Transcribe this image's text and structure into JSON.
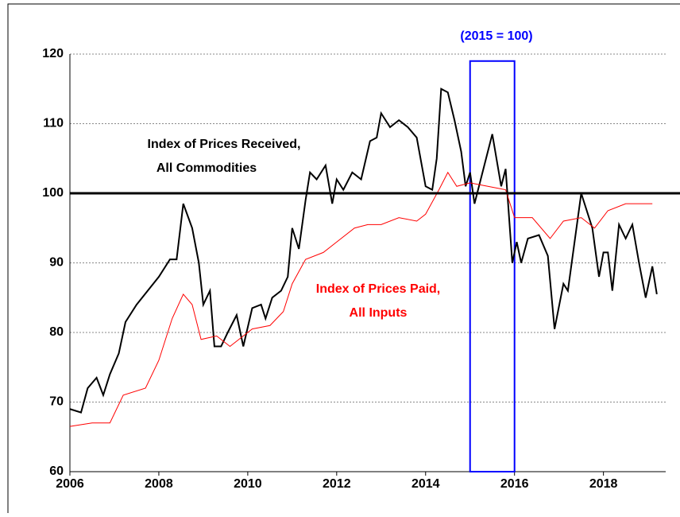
{
  "chart_data": {
    "type": "line",
    "annotations": [
      "(2015 = 100)",
      "Index of Prices Received,",
      "All Commodities",
      "Index of Prices Paid,",
      "All Inputs"
    ],
    "xlim": [
      2006,
      2019.4
    ],
    "ylim": [
      60,
      120
    ],
    "xticks": [
      2006,
      2008,
      2010,
      2012,
      2014,
      2016,
      2018
    ],
    "yticks": [
      60,
      70,
      80,
      90,
      100,
      110,
      120
    ],
    "grid": true,
    "reference_line": 100,
    "highlight": {
      "x": [
        2015,
        2016
      ],
      "y": [
        60,
        119
      ],
      "color": "#0000ff"
    },
    "series": [
      {
        "color": "#000000",
        "x": [
          2006.0,
          2006.25,
          2006.4,
          2006.6,
          2006.75,
          2006.9,
          2007.1,
          2007.25,
          2007.5,
          2007.75,
          2008.0,
          2008.25,
          2008.4,
          2008.55,
          2008.75,
          2008.9,
          2009.0,
          2009.15,
          2009.25,
          2009.4,
          2009.55,
          2009.75,
          2009.9,
          2010.1,
          2010.3,
          2010.4,
          2010.55,
          2010.75,
          2010.9,
          2011.0,
          2011.15,
          2011.3,
          2011.4,
          2011.55,
          2011.75,
          2011.9,
          2012.0,
          2012.15,
          2012.35,
          2012.55,
          2012.75,
          2012.9,
          2013.0,
          2013.2,
          2013.4,
          2013.6,
          2013.8,
          2014.0,
          2014.15,
          2014.25,
          2014.35,
          2014.5,
          2014.65,
          2014.8,
          2014.9,
          2015.0,
          2015.1,
          2015.3,
          2015.5,
          2015.7,
          2015.8,
          2015.95,
          2016.05,
          2016.15,
          2016.3,
          2016.55,
          2016.75,
          2016.9,
          2017.1,
          2017.2,
          2017.5,
          2017.75,
          2017.9,
          2018.0,
          2018.1,
          2018.2,
          2018.35,
          2018.5,
          2018.65,
          2018.8,
          2018.95,
          2019.1,
          2019.2
        ],
        "values": [
          69,
          68.5,
          72,
          73.5,
          71,
          74,
          77,
          81.5,
          84,
          86,
          88,
          90.5,
          90.5,
          98.5,
          95,
          90,
          84,
          86,
          78,
          78,
          80,
          82.5,
          78,
          83.5,
          84,
          82,
          85,
          86,
          88,
          95,
          92,
          99,
          103,
          102,
          104,
          98.5,
          102,
          100.5,
          103,
          102,
          107.5,
          108,
          111.5,
          109.5,
          110.5,
          109.5,
          108,
          101,
          100.5,
          105,
          115,
          114.5,
          110.5,
          106,
          101,
          103,
          98.5,
          103.5,
          108.5,
          101,
          103.5,
          90,
          93,
          90,
          93.5,
          94,
          91,
          80.5,
          87,
          86,
          100,
          95,
          88,
          91.5,
          91.5,
          86,
          95.5,
          93.5,
          95.5,
          90,
          85,
          89.5,
          85.5
        ]
      },
      {
        "color": "#ff0000",
        "x": [
          2006.0,
          2006.5,
          2006.9,
          2007.2,
          2007.7,
          2008.0,
          2008.3,
          2008.55,
          2008.75,
          2008.95,
          2009.3,
          2009.6,
          2009.8,
          2010.1,
          2010.5,
          2010.8,
          2011.0,
          2011.3,
          2011.7,
          2012.0,
          2012.4,
          2012.7,
          2013.0,
          2013.4,
          2013.8,
          2014.0,
          2014.3,
          2014.5,
          2014.7,
          2015.0,
          2015.4,
          2015.8,
          2016.0,
          2016.4,
          2016.8,
          2017.1,
          2017.5,
          2017.8,
          2018.1,
          2018.5,
          2019.1
        ],
        "values": [
          66.5,
          67,
          67,
          71,
          72,
          76,
          82,
          85.5,
          84,
          79,
          79.5,
          78,
          79,
          80.5,
          81,
          83,
          87,
          90.5,
          91.5,
          93,
          95,
          95.5,
          95.5,
          96.5,
          96,
          97,
          100.5,
          103,
          101,
          101.5,
          101,
          100.5,
          96.5,
          96.5,
          93.5,
          96,
          96.5,
          95,
          97.5,
          98.5,
          98.5
        ]
      }
    ]
  }
}
